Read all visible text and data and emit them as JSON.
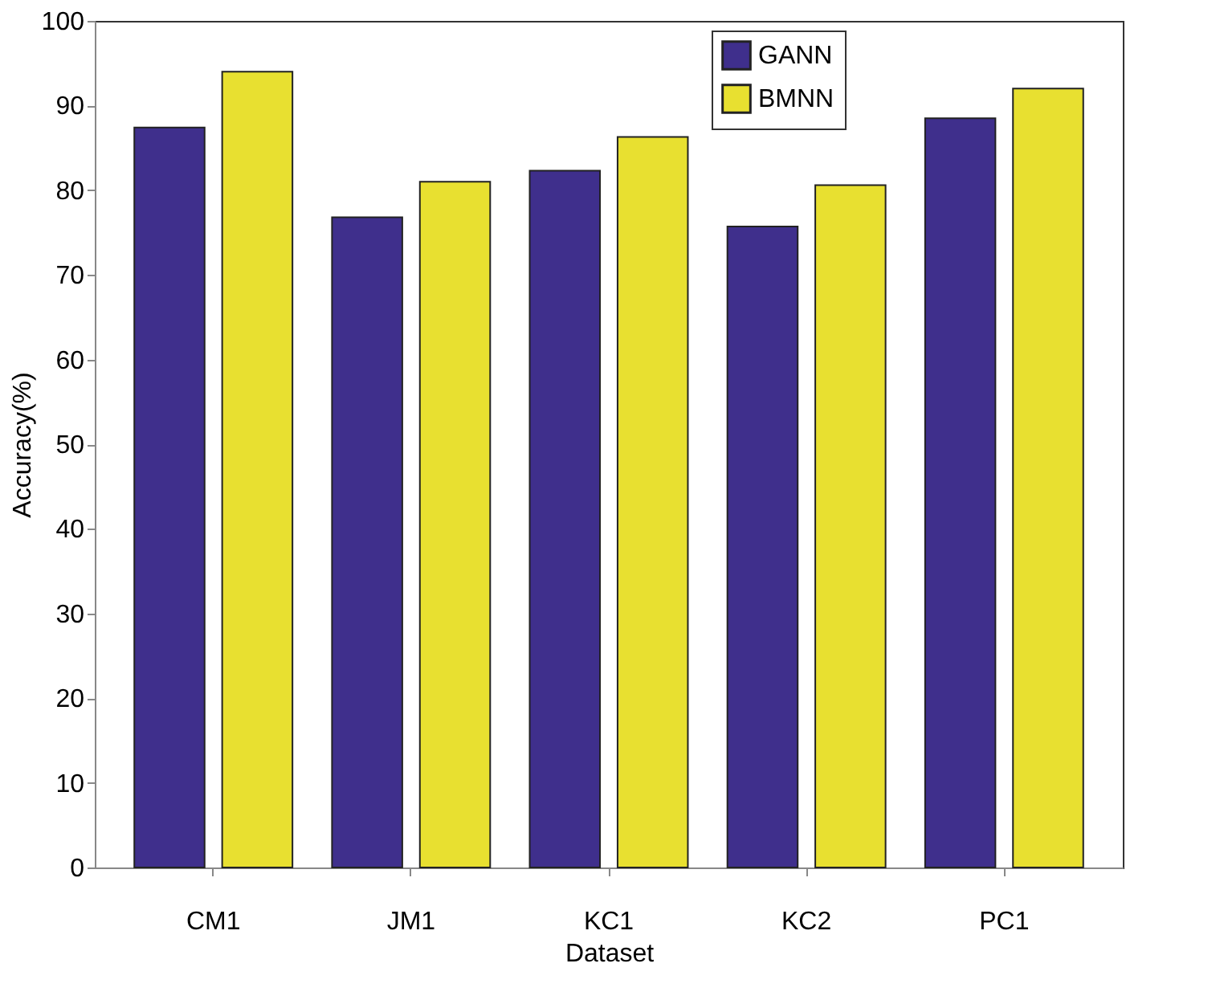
{
  "chart_data": {
    "type": "bar",
    "xlabel": "Dataset",
    "ylabel": "Accuracy(%)",
    "categories": [
      "CM1",
      "JM1",
      "KC1",
      "KC2",
      "PC1"
    ],
    "series": [
      {
        "name": "GANN",
        "color": "#3f2f8c",
        "values": [
          87.4,
          76.8,
          82.3,
          75.7,
          88.5
        ]
      },
      {
        "name": "BMNN",
        "color": "#e8e030",
        "values": [
          94.0,
          81.0,
          86.3,
          80.6,
          92.0
        ]
      }
    ],
    "ylim": [
      0,
      100
    ],
    "yticks": [
      0,
      10,
      20,
      30,
      40,
      50,
      60,
      70,
      80,
      90,
      100
    ],
    "grid": false,
    "legend": "top right"
  }
}
